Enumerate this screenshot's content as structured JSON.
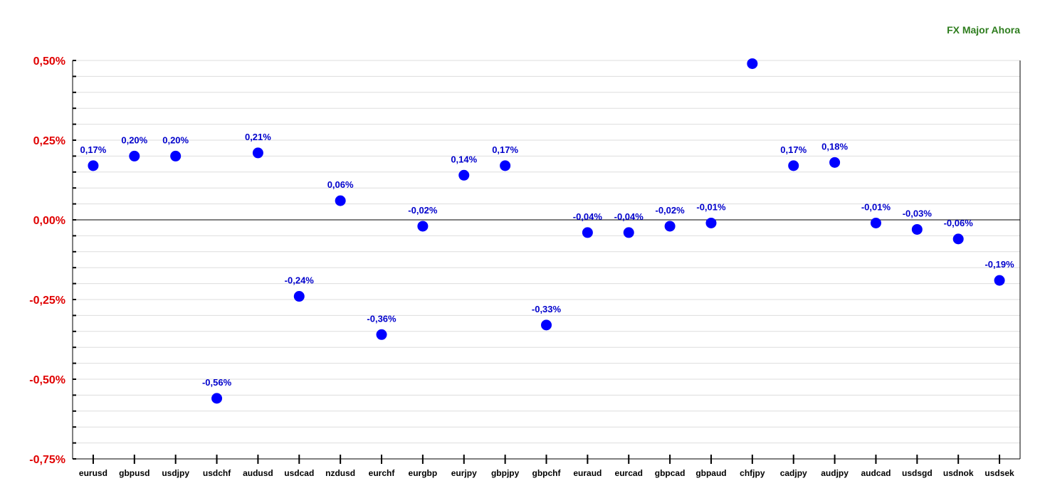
{
  "chart_data": {
    "type": "scatter",
    "title": "FX Major Ahora",
    "xlabel": "",
    "ylabel": "",
    "ylim": [
      -0.75,
      0.5
    ],
    "y_ticks": [
      {
        "value": 0.5,
        "label": "0,50%"
      },
      {
        "value": 0.25,
        "label": "0,25%"
      },
      {
        "value": 0.0,
        "label": "0,00%"
      },
      {
        "value": -0.25,
        "label": "-0,25%"
      },
      {
        "value": -0.5,
        "label": "-0,50%"
      },
      {
        "value": -0.75,
        "label": "-0,75%"
      }
    ],
    "grid": true,
    "categories": [
      "eurusd",
      "gbpusd",
      "usdjpy",
      "usdchf",
      "audusd",
      "usdcad",
      "nzdusd",
      "eurchf",
      "eurgbp",
      "eurjpy",
      "gbpjpy",
      "gbpchf",
      "euraud",
      "eurcad",
      "gbpcad",
      "gbpaud",
      "chfjpy",
      "cadjpy",
      "audjpy",
      "audcad",
      "usdsgd",
      "usdnok",
      "usdsek"
    ],
    "values": [
      0.17,
      0.2,
      0.2,
      -0.56,
      0.21,
      -0.24,
      0.06,
      -0.36,
      -0.02,
      0.14,
      0.17,
      -0.33,
      -0.04,
      -0.04,
      -0.02,
      -0.01,
      0.49,
      0.17,
      0.18,
      -0.01,
      -0.03,
      -0.06,
      -0.19
    ],
    "value_labels": [
      "0,17%",
      "0,20%",
      "0,20%",
      "-0,56%",
      "0,21%",
      "-0,24%",
      "0,06%",
      "-0,36%",
      "-0,02%",
      "0,14%",
      "0,17%",
      "-0,33%",
      "-0,04%",
      "-0,04%",
      "-0,02%",
      "-0,01%",
      "",
      "0,17%",
      "0,18%",
      "-0,01%",
      "-0,03%",
      "-0,06%",
      "-0,19%"
    ],
    "colors": {
      "point": "#0000ff",
      "value_label": "#0000cc",
      "y_tick_label": "#e00000",
      "title": "#2e7d1e",
      "grid": "#dddddd"
    }
  }
}
